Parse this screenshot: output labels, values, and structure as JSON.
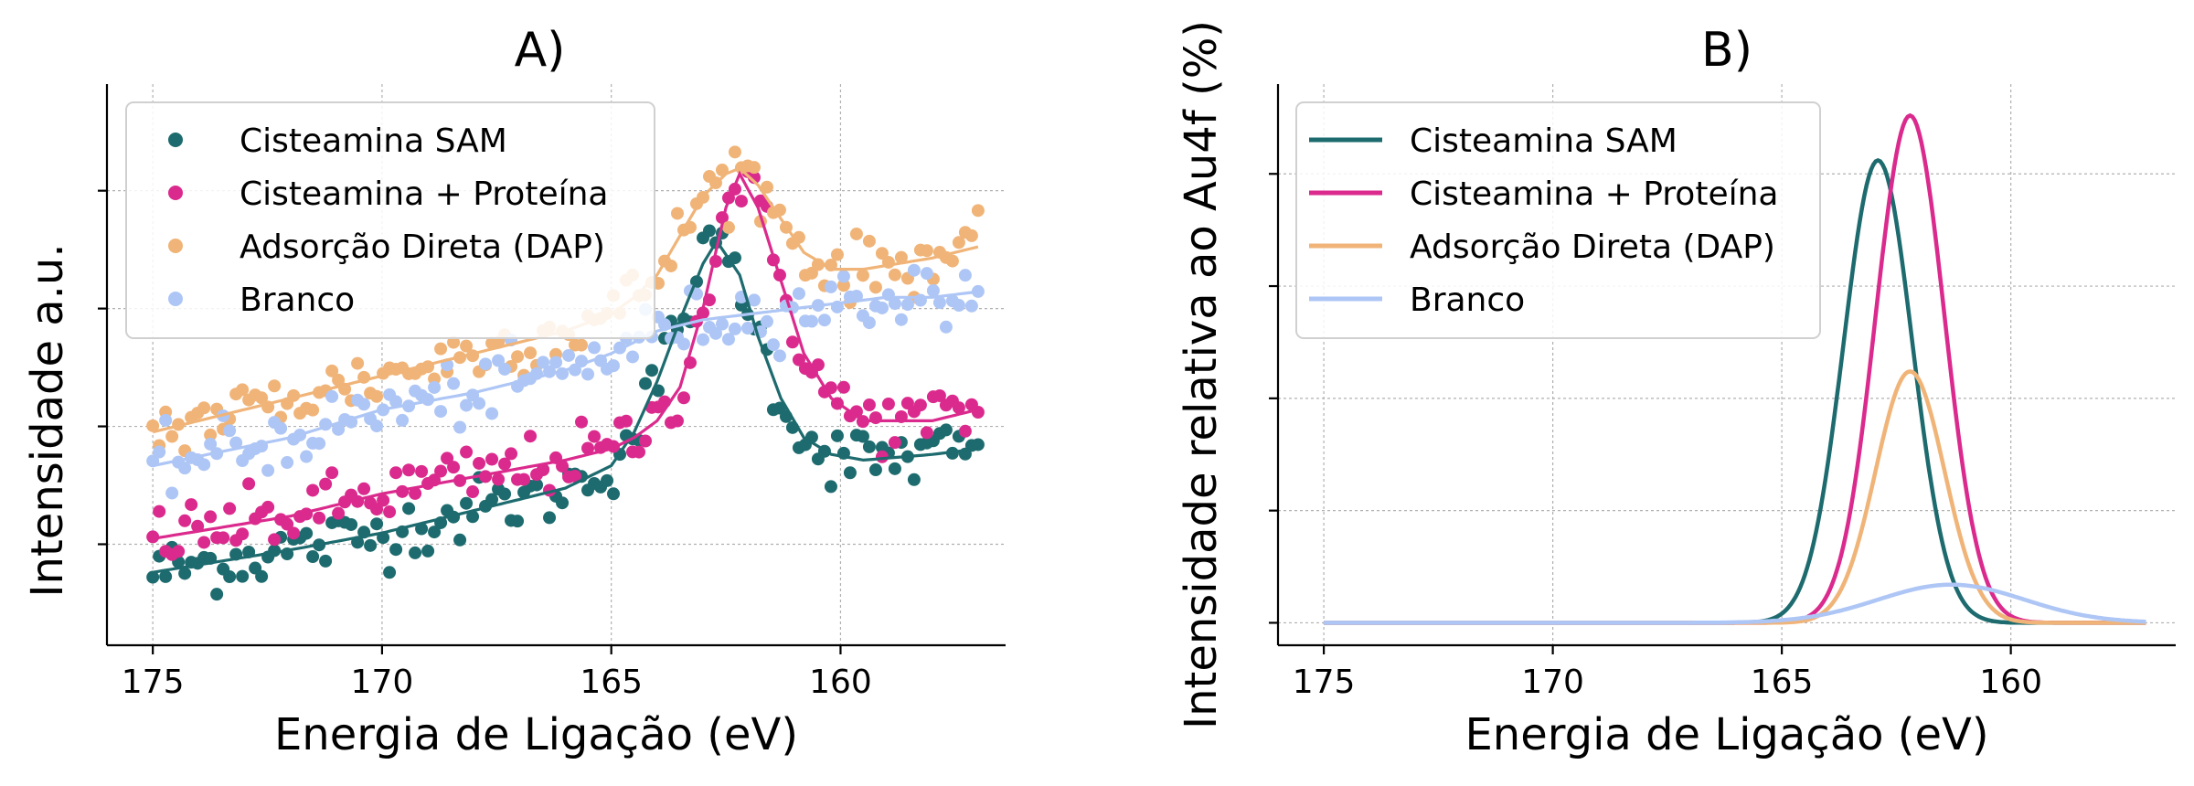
{
  "chart_data": [
    {
      "type": "scatter",
      "title": "A)",
      "xlabel": "Energia de Ligação (eV)",
      "ylabel": "Intensidade a.u.",
      "xlim": [
        176,
        156.4
      ],
      "ylim": [
        0,
        1.0
      ],
      "x_inverted": true,
      "xticks": [
        175,
        170,
        165,
        160
      ],
      "xtick_labels": [
        "175",
        "170",
        "165",
        "160"
      ],
      "ytick_values": [
        0.18,
        0.39,
        0.6,
        0.81
      ],
      "grid": true,
      "legend_position": "upper-left",
      "series": [
        {
          "name": "Cisteamina SAM",
          "color": "#1d6b6e",
          "fit_points": [
            [
              175,
              0.13
            ],
            [
              172,
              0.17
            ],
            [
              170,
              0.2
            ],
            [
              168,
              0.24
            ],
            [
              166,
              0.28
            ],
            [
              165,
              0.32
            ],
            [
              164.5,
              0.38
            ],
            [
              164,
              0.47
            ],
            [
              163.5,
              0.58
            ],
            [
              163,
              0.68
            ],
            [
              162.7,
              0.72
            ],
            [
              162.2,
              0.66
            ],
            [
              161.8,
              0.55
            ],
            [
              161.3,
              0.44
            ],
            [
              160.8,
              0.37
            ],
            [
              160.2,
              0.34
            ],
            [
              159.5,
              0.33
            ],
            [
              158,
              0.34
            ],
            [
              157,
              0.35
            ]
          ]
        },
        {
          "name": "Cisteamina + Proteína",
          "color": "#db2a8d",
          "fit_points": [
            [
              175,
              0.19
            ],
            [
              172,
              0.23
            ],
            [
              170,
              0.27
            ],
            [
              168,
              0.3
            ],
            [
              166,
              0.33
            ],
            [
              165,
              0.35
            ],
            [
              164.5,
              0.37
            ],
            [
              164,
              0.4
            ],
            [
              163.5,
              0.46
            ],
            [
              163,
              0.6
            ],
            [
              162.5,
              0.78
            ],
            [
              162.2,
              0.84
            ],
            [
              161.8,
              0.78
            ],
            [
              161.3,
              0.65
            ],
            [
              160.8,
              0.52
            ],
            [
              160.2,
              0.44
            ],
            [
              159.5,
              0.4
            ],
            [
              158,
              0.4
            ],
            [
              157,
              0.42
            ]
          ]
        },
        {
          "name": "Adsorção Direta (DAP)",
          "color": "#f0b478",
          "fit_points": [
            [
              175,
              0.38
            ],
            [
              172,
              0.44
            ],
            [
              170,
              0.48
            ],
            [
              168,
              0.52
            ],
            [
              166,
              0.56
            ],
            [
              165,
              0.59
            ],
            [
              164.5,
              0.62
            ],
            [
              164,
              0.66
            ],
            [
              163.5,
              0.73
            ],
            [
              163,
              0.8
            ],
            [
              162.5,
              0.84
            ],
            [
              162.2,
              0.85
            ],
            [
              161.8,
              0.82
            ],
            [
              161.3,
              0.76
            ],
            [
              160.8,
              0.7
            ],
            [
              160.2,
              0.67
            ],
            [
              159.5,
              0.67
            ],
            [
              158,
              0.69
            ],
            [
              157,
              0.71
            ]
          ]
        },
        {
          "name": "Branco",
          "color": "#aec6f5",
          "fit_points": [
            [
              175,
              0.32
            ],
            [
              172,
              0.37
            ],
            [
              170,
              0.42
            ],
            [
              168,
              0.45
            ],
            [
              166,
              0.49
            ],
            [
              165,
              0.52
            ],
            [
              164.5,
              0.54
            ],
            [
              164,
              0.56
            ],
            [
              163.5,
              0.57
            ],
            [
              163,
              0.58
            ],
            [
              162,
              0.59
            ],
            [
              161,
              0.6
            ],
            [
              160,
              0.61
            ],
            [
              159,
              0.62
            ],
            [
              158,
              0.62
            ],
            [
              157,
              0.63
            ]
          ]
        }
      ]
    },
    {
      "type": "line",
      "title": "B)",
      "xlabel": "Energia de Ligação (eV)",
      "ylabel": "Intensidade relativa ao Au4f (%)",
      "xlim": [
        176,
        156.4
      ],
      "ylim": [
        -0.05,
        1.2
      ],
      "x_inverted": true,
      "xticks": [
        175,
        170,
        165,
        160
      ],
      "xtick_labels": [
        "175",
        "170",
        "165",
        "160"
      ],
      "ytick_values": [
        0,
        0.25,
        0.5,
        0.75,
        1.0
      ],
      "grid": true,
      "legend_position": "upper-left",
      "series": [
        {
          "name": "Cisteamina SAM",
          "color": "#1d6b6e",
          "center": 162.9,
          "amplitude": 1.03,
          "sigma": 0.75
        },
        {
          "name": "Cisteamina + Proteína",
          "color": "#db2a8d",
          "center": 162.2,
          "amplitude": 1.13,
          "sigma": 0.75
        },
        {
          "name": "Adsorção Direta (DAP)",
          "color": "#f0b478",
          "center": 162.2,
          "amplitude": 0.56,
          "sigma": 0.75
        },
        {
          "name": "Branco",
          "color": "#aec6f5",
          "center": 161.3,
          "amplitude": 0.085,
          "sigma": 1.6
        }
      ]
    }
  ]
}
